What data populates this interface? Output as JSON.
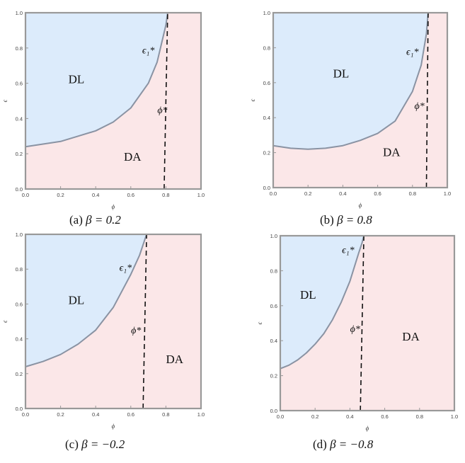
{
  "colors": {
    "dl_region": "#dcebfb",
    "da_region": "#fbe7e8",
    "boundary": "#8a93a3",
    "frame": "#999999",
    "threshold_line": "#111111",
    "tick_text": "#444444"
  },
  "chart_data": [
    {
      "type": "area",
      "caption": "(a)",
      "beta_label": "β = 0.2",
      "xlabel": "ϕ",
      "ylabel": "ϵ",
      "xlim": [
        0,
        1
      ],
      "ylim": [
        0,
        1
      ],
      "x_ticks": [
        "0.0",
        "0.2",
        "0.4",
        "0.6",
        "0.8",
        "1.0"
      ],
      "y_ticks": [
        "0.0",
        "0.2",
        "0.4",
        "0.6",
        "0.8",
        "1.0"
      ],
      "regions": [
        {
          "label": "DL",
          "at": [
            0.29,
            0.6
          ]
        },
        {
          "label": "DA",
          "at": [
            0.61,
            0.16
          ]
        }
      ],
      "boundary_label": "ϵ₁*",
      "boundary_label_at": [
        0.7,
        0.77
      ],
      "phi_star_label": "ϕ*",
      "phi_star_label_at": [
        0.78,
        0.43
      ],
      "boundary_curve": {
        "x": [
          0.0,
          0.1,
          0.2,
          0.3,
          0.4,
          0.5,
          0.6,
          0.7,
          0.75,
          0.8,
          0.81
        ],
        "y": [
          0.24,
          0.255,
          0.27,
          0.3,
          0.33,
          0.38,
          0.46,
          0.6,
          0.72,
          0.93,
          1.0
        ]
      },
      "phi_star_line": {
        "x": [
          0.79,
          0.81
        ],
        "y": [
          0.0,
          1.0
        ]
      }
    },
    {
      "type": "area",
      "caption": "(b)",
      "beta_label": "β = 0.8",
      "xlabel": "ϕ",
      "ylabel": "ϵ",
      "xlim": [
        0,
        1
      ],
      "ylim": [
        0,
        1
      ],
      "x_ticks": [
        "0.0",
        "0.2",
        "0.4",
        "0.6",
        "0.8",
        "1.0"
      ],
      "y_ticks": [
        "0.0",
        "0.2",
        "0.4",
        "0.6",
        "0.8",
        "1.0"
      ],
      "regions": [
        {
          "label": "DL",
          "at": [
            0.39,
            0.63
          ]
        },
        {
          "label": "DA",
          "at": [
            0.68,
            0.18
          ]
        }
      ],
      "boundary_label": "ϵ₁*",
      "boundary_label_at": [
        0.8,
        0.76
      ],
      "phi_star_label": "ϕ*",
      "phi_star_label_at": [
        0.84,
        0.45
      ],
      "boundary_curve": {
        "x": [
          0.0,
          0.1,
          0.2,
          0.3,
          0.4,
          0.5,
          0.6,
          0.7,
          0.8,
          0.85,
          0.88,
          0.89
        ],
        "y": [
          0.24,
          0.225,
          0.22,
          0.225,
          0.24,
          0.27,
          0.31,
          0.38,
          0.55,
          0.7,
          0.88,
          1.0
        ]
      },
      "phi_star_line": {
        "x": [
          0.88,
          0.89
        ],
        "y": [
          0.0,
          1.0
        ]
      }
    },
    {
      "type": "area",
      "caption": "(c)",
      "beta_label": "β = −0.2",
      "xlabel": "ϕ",
      "ylabel": "ϵ",
      "xlim": [
        0,
        1
      ],
      "ylim": [
        0,
        1
      ],
      "x_ticks": [
        "0.0",
        "0.2",
        "0.4",
        "0.6",
        "0.8",
        "1.0"
      ],
      "y_ticks": [
        "0.0",
        "0.2",
        "0.4",
        "0.6",
        "0.8",
        "1.0"
      ],
      "regions": [
        {
          "label": "DL",
          "at": [
            0.29,
            0.6
          ]
        },
        {
          "label": "DA",
          "at": [
            0.85,
            0.26
          ]
        }
      ],
      "boundary_label": "ϵ₁*",
      "boundary_label_at": [
        0.57,
        0.79
      ],
      "phi_star_label": "ϕ*",
      "phi_star_label_at": [
        0.63,
        0.43
      ],
      "boundary_curve": {
        "x": [
          0.0,
          0.1,
          0.2,
          0.3,
          0.4,
          0.5,
          0.6,
          0.65,
          0.68,
          0.69
        ],
        "y": [
          0.24,
          0.27,
          0.31,
          0.37,
          0.45,
          0.58,
          0.77,
          0.88,
          0.97,
          1.0
        ]
      },
      "phi_star_line": {
        "x": [
          0.67,
          0.69
        ],
        "y": [
          0.0,
          1.0
        ]
      }
    },
    {
      "type": "area",
      "caption": "(d)",
      "beta_label": "β = −0.8",
      "xlabel": "ϕ",
      "ylabel": "ϵ",
      "xlim": [
        0,
        1
      ],
      "ylim": [
        0,
        1
      ],
      "x_ticks": [
        "0.0",
        "0.2",
        "0.4",
        "0.6",
        "0.8",
        "1.0"
      ],
      "y_ticks": [
        "0.0",
        "0.2",
        "0.4",
        "0.6",
        "0.8",
        "1.0"
      ],
      "regions": [
        {
          "label": "DL",
          "at": [
            0.16,
            0.64
          ]
        },
        {
          "label": "DA",
          "at": [
            0.75,
            0.4
          ]
        }
      ],
      "boundary_label": "ϵ₁*",
      "boundary_label_at": [
        0.39,
        0.9
      ],
      "phi_star_label": "ϕ*",
      "phi_star_label_at": [
        0.43,
        0.45
      ],
      "boundary_curve": {
        "x": [
          0.0,
          0.05,
          0.1,
          0.15,
          0.2,
          0.25,
          0.3,
          0.35,
          0.4,
          0.45,
          0.47,
          0.48
        ],
        "y": [
          0.24,
          0.26,
          0.29,
          0.33,
          0.38,
          0.44,
          0.52,
          0.62,
          0.74,
          0.9,
          0.96,
          1.0
        ]
      },
      "phi_star_line": {
        "x": [
          0.46,
          0.48
        ],
        "y": [
          0.0,
          1.0
        ]
      }
    }
  ]
}
